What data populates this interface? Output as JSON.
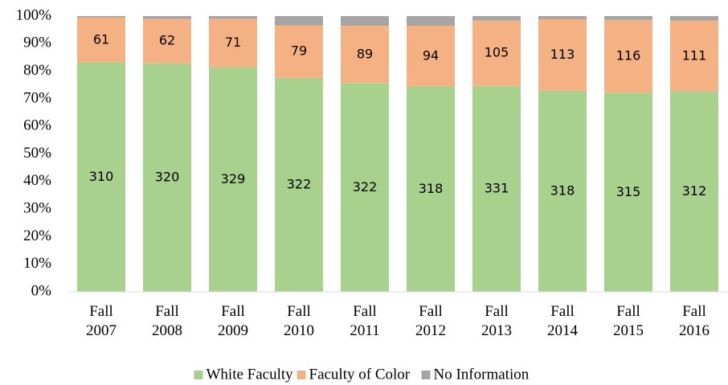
{
  "chart_data": {
    "type": "bar",
    "stacked": "percent",
    "categories": [
      "Fall 2007",
      "Fall 2008",
      "Fall 2009",
      "Fall 2010",
      "Fall 2011",
      "Fall 2012",
      "Fall 2013",
      "Fall 2014",
      "Fall 2015",
      "Fall 2016"
    ],
    "series": [
      {
        "name": "White Faculty",
        "color": "#a9d18e",
        "data_labels": true,
        "values": [
          310,
          320,
          329,
          322,
          322,
          318,
          331,
          318,
          315,
          312
        ]
      },
      {
        "name": "Faculty of Color",
        "color": "#f4b183",
        "data_labels": true,
        "values": [
          61,
          62,
          71,
          79,
          89,
          94,
          105,
          113,
          116,
          111
        ]
      },
      {
        "name": "No Information",
        "color": "#a5a5a5",
        "data_labels": false,
        "values": [
          2,
          4,
          4,
          14,
          15,
          15,
          7,
          5,
          6,
          7
        ]
      }
    ],
    "ylim": [
      0,
      100
    ],
    "yticks": [
      {
        "value": 0,
        "label": "0%"
      },
      {
        "value": 10,
        "label": "10%"
      },
      {
        "value": 20,
        "label": "20%"
      },
      {
        "value": 30,
        "label": "30%"
      },
      {
        "value": 40,
        "label": "40%"
      },
      {
        "value": 50,
        "label": "50%"
      },
      {
        "value": 60,
        "label": "60%"
      },
      {
        "value": 70,
        "label": "70%"
      },
      {
        "value": 80,
        "label": "80%"
      },
      {
        "value": 90,
        "label": "90%"
      },
      {
        "value": 100,
        "label": "100%"
      }
    ],
    "grid": false,
    "legend": "bottom"
  }
}
